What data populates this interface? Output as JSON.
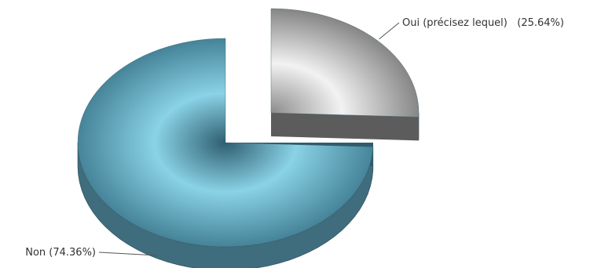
{
  "chart_data": {
    "type": "pie",
    "style": "3d",
    "slices": [
      {
        "label": "Non",
        "value": 74.36,
        "display": "Non (74.36%)",
        "color": "#5a96ab",
        "exploded": false
      },
      {
        "label": "Oui (précisez lequel)",
        "value": 25.64,
        "display": "Oui (précisez lequel)   (25.64%)",
        "color": "#9a9a9a",
        "exploded": true
      }
    ],
    "legend": "none",
    "labels": "outside-with-leader-lines"
  }
}
